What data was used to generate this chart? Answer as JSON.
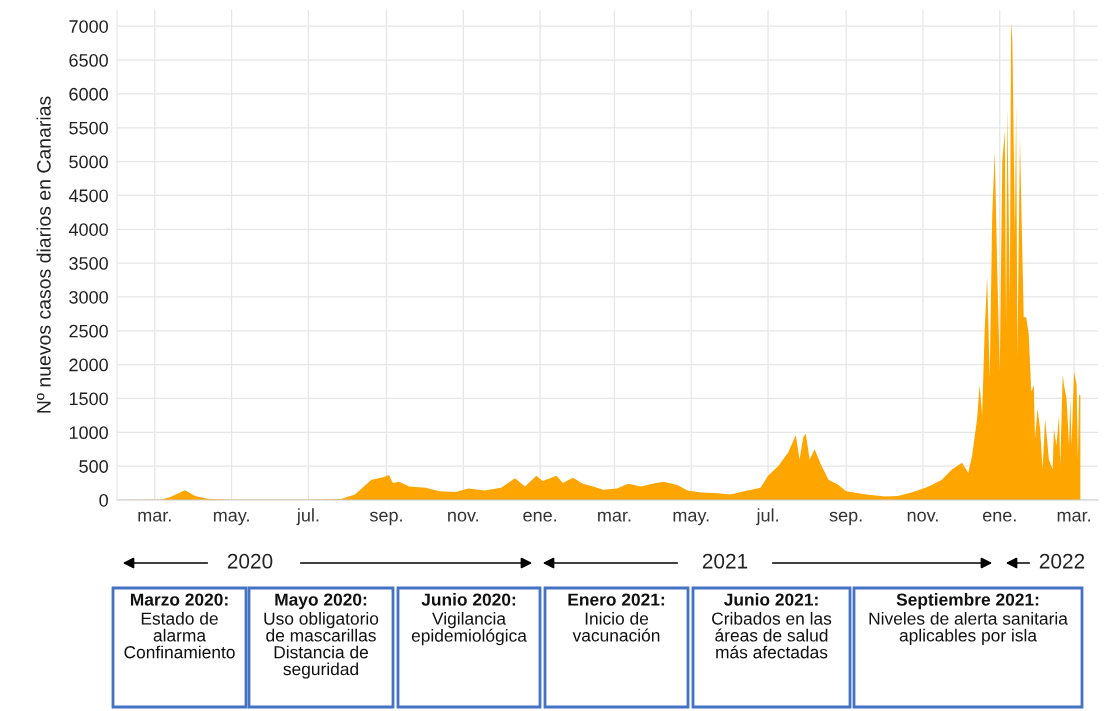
{
  "chart_data": {
    "type": "area",
    "ylabel": "Nº nuevos casos diarios en Canarias",
    "xlim": [
      "2020-01-31",
      "2022-03-20"
    ],
    "ylim": [
      0,
      7240
    ],
    "yticks": [
      0,
      500,
      1000,
      1500,
      2000,
      2500,
      3000,
      3500,
      4000,
      4500,
      5000,
      5500,
      6000,
      6500,
      7000
    ],
    "xticks": [
      {
        "value": "2020-03-01",
        "label": "mar."
      },
      {
        "value": "2020-05-01",
        "label": "may."
      },
      {
        "value": "2020-07-01",
        "label": "jul."
      },
      {
        "value": "2020-09-01",
        "label": "sep."
      },
      {
        "value": "2020-11-01",
        "label": "nov."
      },
      {
        "value": "2021-01-01",
        "label": "ene."
      },
      {
        "value": "2021-03-01",
        "label": "mar."
      },
      {
        "value": "2021-05-01",
        "label": "may."
      },
      {
        "value": "2021-07-01",
        "label": "jul."
      },
      {
        "value": "2021-09-01",
        "label": "sep."
      },
      {
        "value": "2021-11-01",
        "label": "nov."
      },
      {
        "value": "2022-01-01",
        "label": "ene."
      },
      {
        "value": "2022-03-01",
        "label": "mar."
      }
    ],
    "grid": true,
    "legend": false,
    "series": [
      {
        "color": "#ffa500",
        "x": [
          "2020-01-31",
          "2020-03-05",
          "2020-03-13",
          "2020-03-25",
          "2020-04-02",
          "2020-04-12",
          "2020-05-01",
          "2020-07-01",
          "2020-07-27",
          "2020-08-07",
          "2020-08-20",
          "2020-08-28",
          "2020-09-03",
          "2020-09-06",
          "2020-09-11",
          "2020-09-19",
          "2020-10-02",
          "2020-10-13",
          "2020-10-26",
          "2020-11-05",
          "2020-11-18",
          "2020-12-01",
          "2020-12-12",
          "2020-12-20",
          "2020-12-29",
          "2021-01-03",
          "2021-01-14",
          "2021-01-19",
          "2021-01-27",
          "2021-02-04",
          "2021-02-12",
          "2021-02-20",
          "2021-03-03",
          "2021-03-12",
          "2021-03-22",
          "2021-03-31",
          "2021-04-09",
          "2021-04-20",
          "2021-04-28",
          "2021-05-09",
          "2021-05-22",
          "2021-06-01",
          "2021-06-12",
          "2021-06-25",
          "2021-07-01",
          "2021-07-09",
          "2021-07-17",
          "2021-07-23",
          "2021-07-26",
          "2021-07-29",
          "2021-07-31",
          "2021-08-03",
          "2021-08-07",
          "2021-08-12",
          "2021-08-18",
          "2021-08-26",
          "2021-09-01",
          "2021-09-17",
          "2021-10-02",
          "2021-10-12",
          "2021-10-23",
          "2021-11-03",
          "2021-11-08",
          "2021-11-16",
          "2021-11-24",
          "2021-12-02",
          "2021-12-07",
          "2021-12-10",
          "2021-12-14",
          "2021-12-16",
          "2021-12-18",
          "2021-12-20",
          "2021-12-22",
          "2021-12-24",
          "2021-12-26",
          "2021-12-28",
          "2021-12-30",
          "2022-01-01",
          "2022-01-03",
          "2022-01-05",
          "2022-01-06",
          "2022-01-07",
          "2022-01-09",
          "2022-01-10",
          "2022-01-11",
          "2022-01-13",
          "2022-01-14",
          "2022-01-15",
          "2022-01-17",
          "2022-01-18",
          "2022-01-20",
          "2022-01-22",
          "2022-01-24",
          "2022-01-26",
          "2022-01-28",
          "2022-01-29",
          "2022-01-31",
          "2022-02-02",
          "2022-02-04",
          "2022-02-06",
          "2022-02-09",
          "2022-02-12",
          "2022-02-13",
          "2022-02-15",
          "2022-02-17",
          "2022-02-18",
          "2022-02-20",
          "2022-02-21",
          "2022-02-23",
          "2022-02-25",
          "2022-02-26",
          "2022-02-27",
          "2022-03-01",
          "2022-03-03",
          "2022-03-04",
          "2022-03-05",
          "2022-03-06"
        ],
        "values": [
          0,
          5,
          40,
          145,
          60,
          20,
          5,
          5,
          15,
          80,
          300,
          330,
          370,
          250,
          270,
          200,
          180,
          130,
          120,
          170,
          140,
          180,
          320,
          200,
          360,
          280,
          360,
          250,
          330,
          240,
          200,
          150,
          170,
          240,
          200,
          240,
          270,
          220,
          140,
          110,
          100,
          80,
          130,
          180,
          360,
          500,
          700,
          960,
          600,
          930,
          980,
          600,
          750,
          520,
          300,
          220,
          130,
          80,
          50,
          60,
          110,
          180,
          220,
          300,
          450,
          550,
          400,
          650,
          1200,
          1700,
          1250,
          2500,
          3300,
          1800,
          4200,
          5150,
          3400,
          1900,
          5000,
          5450,
          2500,
          5800,
          2900,
          7050,
          6800,
          3900,
          5850,
          2100,
          5350,
          4450,
          2700,
          2700,
          2450,
          1600,
          1700,
          900,
          1350,
          1050,
          450,
          1200,
          600,
          450,
          1050,
          800,
          1250,
          500,
          1850,
          1700,
          1500,
          800,
          1500,
          800,
          1900,
          1700,
          600,
          1550,
          1550
        ]
      }
    ],
    "annotations": [
      "2020",
      "2021",
      "2022",
      "Marzo 2020:\nEstado de\nalarma\nConfinamiento",
      "Mayo 2020:\nUso obligatorio\nde mascarillas\nDistancia de\nseguridad",
      "Junio 2020:\nVigilancia\nepidemiológica",
      "Enero 2021:\nInicio de\nvacunación",
      "Junio 2021:\nCribados en las\náreas de salud\nmás afectadas",
      "Septiembre 2021:\nNiveles de alerta sanitaria\naplicables por isla"
    ]
  }
}
